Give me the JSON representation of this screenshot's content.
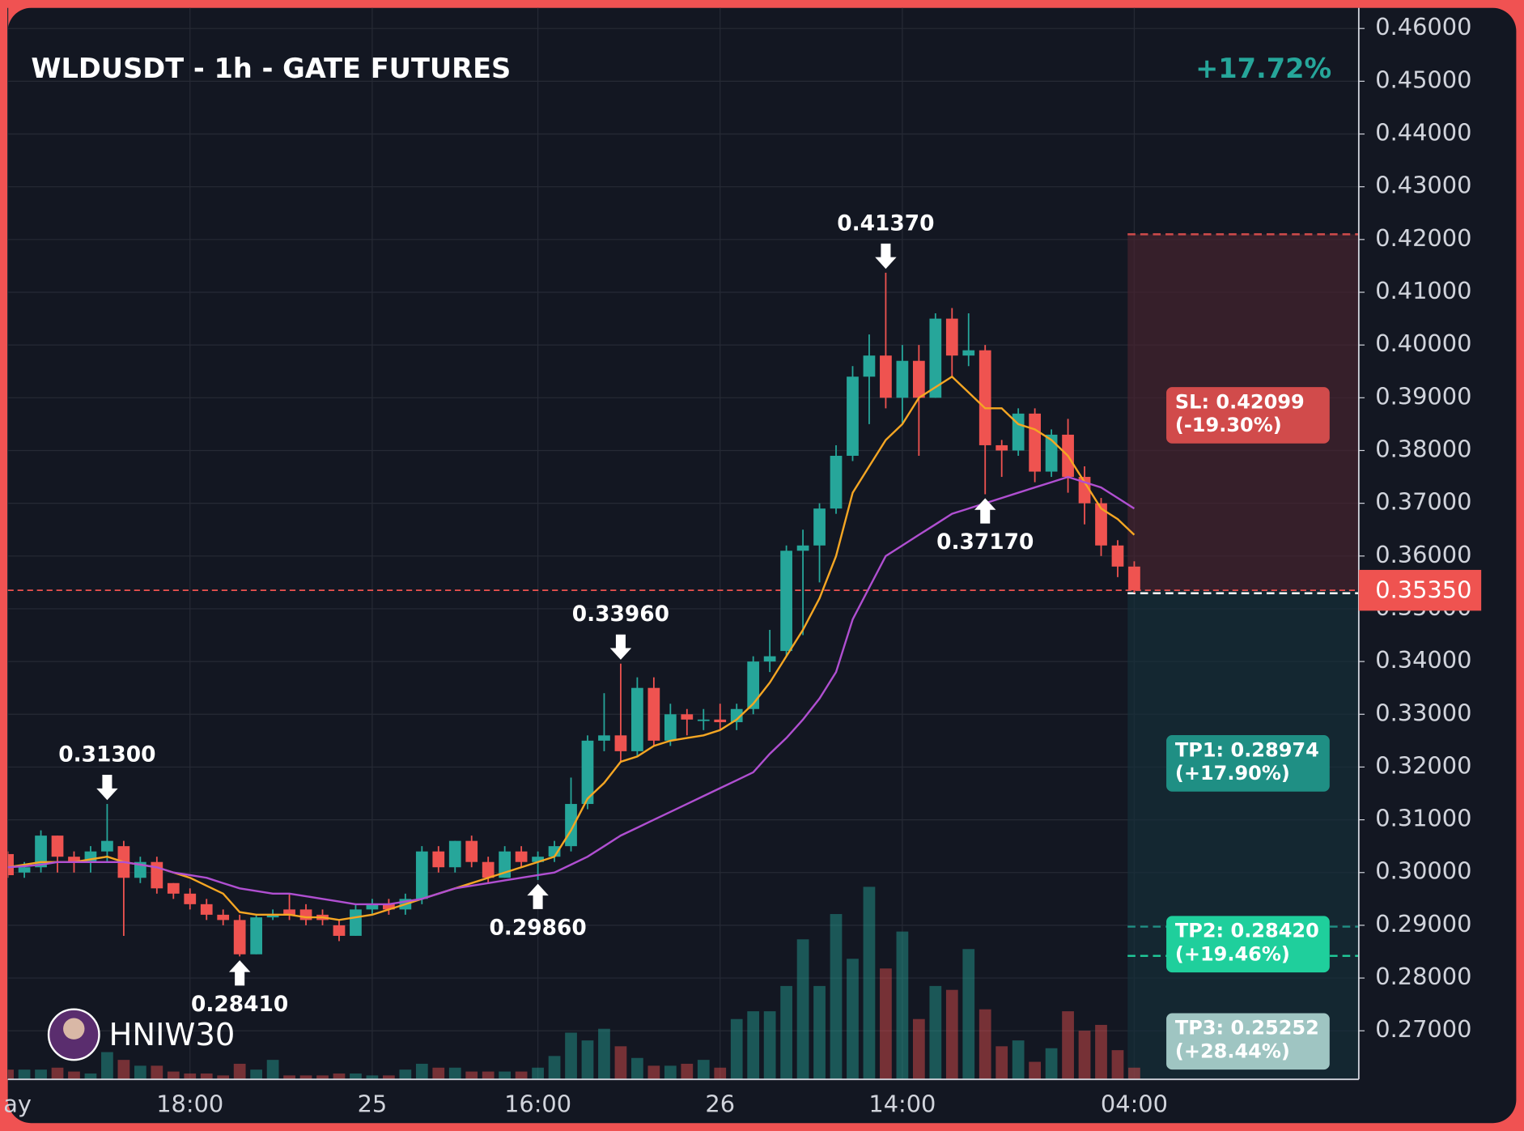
{
  "chart_data": {
    "type": "candlestick",
    "title": "WLDUSDT - 1h - GATE FUTURES",
    "change": "+17.72%",
    "watermark": "HNIW30",
    "categories": [
      "ay",
      null,
      null,
      null,
      null,
      null,
      null,
      null,
      null,
      null,
      null,
      "18:00",
      null,
      null,
      null,
      null,
      null,
      null,
      null,
      null,
      null,
      null,
      "25",
      null,
      null,
      null,
      null,
      null,
      null,
      null,
      null,
      null,
      "16:00",
      null,
      null,
      null,
      null,
      null,
      null,
      null,
      null,
      null,
      null,
      "26",
      null,
      null,
      null,
      null,
      null,
      null,
      null,
      null,
      null,
      null,
      "14:00",
      null,
      null,
      null,
      null,
      null,
      null,
      null,
      null,
      null,
      null,
      null,
      null,
      null,
      "04:00"
    ],
    "open": [
      0.3035,
      0.3,
      0.301,
      0.307,
      0.303,
      0.302,
      0.304,
      0.305,
      0.299,
      0.302,
      0.298,
      0.296,
      0.294,
      0.292,
      0.291,
      0.2845,
      0.2915,
      0.293,
      0.293,
      0.292,
      0.29,
      0.288,
      0.293,
      0.294,
      0.293,
      0.295,
      0.304,
      0.301,
      0.306,
      0.302,
      0.299,
      0.304,
      0.302,
      0.303,
      0.305,
      0.313,
      0.325,
      0.326,
      0.323,
      0.335,
      0.325,
      0.33,
      0.329,
      0.329,
      0.3285,
      0.331,
      0.34,
      0.342,
      0.361,
      0.362,
      0.369,
      0.379,
      0.394,
      0.398,
      0.39,
      0.397,
      0.39,
      0.405,
      0.398,
      0.399,
      0.381,
      0.38,
      0.387,
      0.376,
      0.383,
      0.375,
      0.37,
      0.362,
      0.358
    ],
    "high": [
      0.304,
      0.302,
      0.308,
      0.307,
      0.304,
      0.305,
      0.313,
      0.306,
      0.303,
      0.303,
      0.298,
      0.297,
      0.295,
      0.293,
      0.292,
      0.292,
      0.293,
      0.296,
      0.294,
      0.293,
      0.291,
      0.294,
      0.295,
      0.295,
      0.296,
      0.305,
      0.305,
      0.306,
      0.307,
      0.303,
      0.305,
      0.305,
      0.304,
      0.306,
      0.318,
      0.326,
      0.334,
      0.3396,
      0.337,
      0.337,
      0.332,
      0.331,
      0.331,
      0.332,
      0.332,
      0.341,
      0.346,
      0.362,
      0.365,
      0.37,
      0.381,
      0.396,
      0.402,
      0.4137,
      0.4,
      0.4,
      0.406,
      0.407,
      0.406,
      0.4,
      0.382,
      0.388,
      0.388,
      0.384,
      0.386,
      0.377,
      0.371,
      0.363,
      0.359
    ],
    "low": [
      0.299,
      0.299,
      0.3,
      0.3,
      0.3,
      0.3,
      0.302,
      0.288,
      0.298,
      0.296,
      0.295,
      0.293,
      0.291,
      0.29,
      0.2841,
      0.2845,
      0.291,
      0.291,
      0.29,
      0.29,
      0.287,
      0.288,
      0.292,
      0.292,
      0.292,
      0.294,
      0.3,
      0.3,
      0.301,
      0.298,
      0.299,
      0.301,
      0.2986,
      0.302,
      0.304,
      0.312,
      0.323,
      0.321,
      0.322,
      0.324,
      0.324,
      0.326,
      0.327,
      0.327,
      0.327,
      0.33,
      0.338,
      0.341,
      0.345,
      0.355,
      0.368,
      0.378,
      0.385,
      0.388,
      0.385,
      0.379,
      0.39,
      0.394,
      0.396,
      0.3717,
      0.375,
      0.379,
      0.374,
      0.375,
      0.372,
      0.366,
      0.36,
      0.356,
      0.353
    ],
    "close": [
      0.2995,
      0.301,
      0.307,
      0.303,
      0.302,
      0.304,
      0.306,
      0.299,
      0.302,
      0.297,
      0.296,
      0.294,
      0.292,
      0.291,
      0.2845,
      0.2915,
      0.292,
      0.292,
      0.291,
      0.291,
      0.288,
      0.293,
      0.294,
      0.293,
      0.295,
      0.304,
      0.301,
      0.306,
      0.302,
      0.299,
      0.304,
      0.302,
      0.303,
      0.305,
      0.313,
      0.325,
      0.326,
      0.323,
      0.335,
      0.325,
      0.33,
      0.329,
      0.329,
      0.3285,
      0.331,
      0.34,
      0.341,
      0.361,
      0.362,
      0.369,
      0.379,
      0.394,
      0.398,
      0.39,
      0.397,
      0.39,
      0.405,
      0.398,
      0.399,
      0.381,
      0.38,
      0.387,
      0.376,
      0.383,
      0.375,
      0.37,
      0.362,
      0.358,
      0.3535
    ],
    "volume": [
      10,
      10,
      10,
      12,
      8,
      6,
      28,
      20,
      14,
      14,
      8,
      6,
      6,
      4,
      16,
      10,
      20,
      4,
      4,
      4,
      6,
      6,
      4,
      4,
      10,
      16,
      12,
      12,
      8,
      8,
      8,
      8,
      12,
      24,
      48,
      40,
      52,
      34,
      22,
      14,
      14,
      16,
      20,
      12,
      62,
      70,
      70,
      96,
      144,
      96,
      170,
      124,
      198,
      114,
      152,
      62,
      96,
      92,
      134,
      72,
      34,
      40,
      18,
      32,
      70,
      50,
      56,
      30,
      12
    ],
    "up_color": "#26a69a",
    "down_color": "#ef5350",
    "ma": [
      {
        "color": "#f5a623",
        "values": [
          0.301,
          0.3015,
          0.302,
          0.302,
          0.302,
          0.3025,
          0.303,
          0.302,
          0.3015,
          0.301,
          0.3,
          0.299,
          0.2975,
          0.296,
          0.2925,
          0.292,
          0.292,
          0.292,
          0.2915,
          0.2915,
          0.291,
          0.2915,
          0.292,
          0.293,
          0.294,
          0.295,
          0.296,
          0.297,
          0.298,
          0.299,
          0.3,
          0.301,
          0.302,
          0.303,
          0.308,
          0.314,
          0.317,
          0.321,
          0.322,
          0.324,
          0.325,
          0.3255,
          0.326,
          0.327,
          0.329,
          0.332,
          0.336,
          0.341,
          0.346,
          0.352,
          0.36,
          0.372,
          0.377,
          0.382,
          0.385,
          0.39,
          0.392,
          0.394,
          0.391,
          0.388,
          0.388,
          0.385,
          0.384,
          0.382,
          0.379,
          0.374,
          0.369,
          0.367,
          0.364
        ]
      },
      {
        "color": "#b04fd1",
        "values": [
          0.301,
          0.3012,
          0.3015,
          0.302,
          0.302,
          0.302,
          0.302,
          0.302,
          0.3015,
          0.301,
          0.3,
          0.2995,
          0.299,
          0.298,
          0.297,
          0.2965,
          0.296,
          0.296,
          0.2955,
          0.295,
          0.2945,
          0.294,
          0.294,
          0.294,
          0.2945,
          0.295,
          0.296,
          0.297,
          0.2975,
          0.298,
          0.2985,
          0.299,
          0.2995,
          0.3,
          0.3015,
          0.303,
          0.305,
          0.307,
          0.3085,
          0.31,
          0.3115,
          0.313,
          0.3145,
          0.316,
          0.3175,
          0.319,
          0.3225,
          0.3255,
          0.329,
          0.333,
          0.338,
          0.348,
          0.354,
          0.36,
          0.362,
          0.364,
          0.366,
          0.368,
          0.369,
          0.37,
          0.371,
          0.372,
          0.373,
          0.374,
          0.375,
          0.374,
          0.373,
          0.371,
          0.369
        ]
      }
    ],
    "annotations": [
      {
        "text": "0.31300",
        "value": 0.313,
        "index": 6,
        "kind": "high"
      },
      {
        "text": "0.28410",
        "value": 0.2841,
        "index": 14,
        "kind": "low"
      },
      {
        "text": "0.29860",
        "value": 0.2986,
        "index": 32,
        "kind": "low"
      },
      {
        "text": "0.33960",
        "value": 0.3396,
        "index": 37,
        "kind": "high"
      },
      {
        "text": "0.41370",
        "value": 0.4137,
        "index": 53,
        "kind": "high"
      },
      {
        "text": "0.37170",
        "value": 0.3717,
        "index": 59,
        "kind": "low"
      }
    ],
    "last_price": {
      "value": 0.3535,
      "label": "0.35350"
    },
    "levels": [
      {
        "label": "SL: 0.42099",
        "change": "(-19.30%)",
        "value": 0.42099,
        "color": "#d14b4b"
      },
      {
        "label": "TP1: 0.28974",
        "change": "(+17.90%)",
        "value": 0.28974,
        "color": "#1f8f84"
      },
      {
        "label": "TP2: 0.28420",
        "change": "(+19.46%)",
        "value": 0.2842,
        "color": "#1fcf9c"
      },
      {
        "label": "TP3: 0.25252",
        "change": "(+28.44%)",
        "value": 0.25252,
        "color": "#9fc5c2"
      }
    ],
    "ylim": [
      0.2608,
      0.4639
    ],
    "yticks": [
      {
        "value": 0.46,
        "label": "0.46000"
      },
      {
        "value": 0.45,
        "label": "0.45000"
      },
      {
        "value": 0.44,
        "label": "0.44000"
      },
      {
        "value": 0.43,
        "label": "0.43000"
      },
      {
        "value": 0.42,
        "label": "0.42000"
      },
      {
        "value": 0.41,
        "label": "0.41000"
      },
      {
        "value": 0.4,
        "label": "0.40000"
      },
      {
        "value": 0.39,
        "label": "0.39000"
      },
      {
        "value": 0.38,
        "label": "0.38000"
      },
      {
        "value": 0.37,
        "label": "0.37000"
      },
      {
        "value": 0.36,
        "label": "0.36000"
      },
      {
        "value": 0.35,
        "label": "0.35000"
      },
      {
        "value": 0.34,
        "label": "0.34000"
      },
      {
        "value": 0.33,
        "label": "0.33000"
      },
      {
        "value": 0.32,
        "label": "0.32000"
      },
      {
        "value": 0.31,
        "label": "0.31000"
      },
      {
        "value": 0.3,
        "label": "0.30000"
      },
      {
        "value": 0.29,
        "label": "0.29000"
      },
      {
        "value": 0.28,
        "label": "0.28000"
      },
      {
        "value": 0.27,
        "label": "0.27000"
      }
    ],
    "grid": true
  }
}
